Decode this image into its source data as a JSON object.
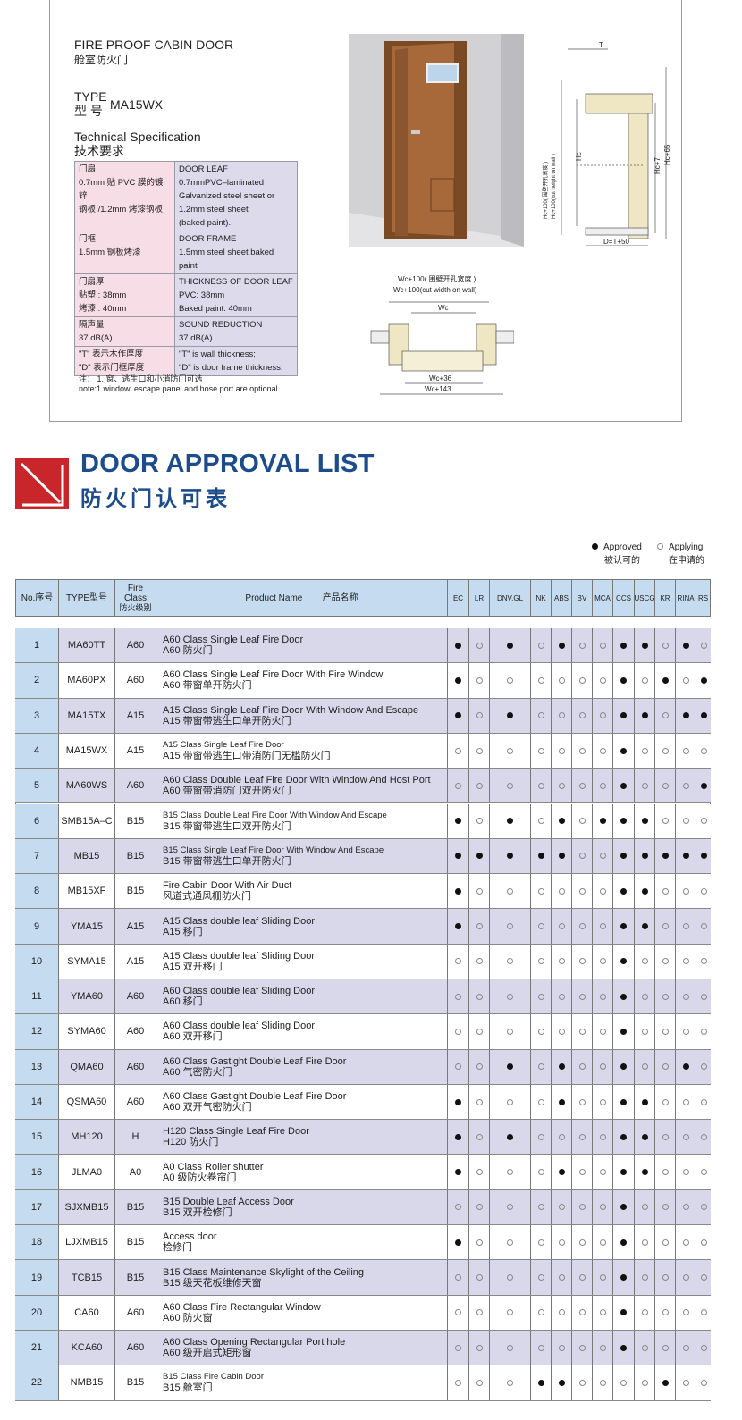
{
  "spec_sheet": {
    "title_en": "FIRE PROOF CABIN DOOR",
    "title_cn": "舱室防火门",
    "type_label_en": "TYPE",
    "type_label_cn": "型  号",
    "type_value": "MA15WX",
    "tech_en": "Technical Specification",
    "tech_cn": "技术要求",
    "rows": [
      {
        "cn": [
          "门扇",
          "0.7mm 贴 PVC 膜的镀锌",
          "钢板 /1.2mm 烤漆钢板"
        ],
        "en": [
          "DOOR LEAF",
          "0.7mmPVC–laminated",
          "Galvanized steel sheet or",
          "1.2mm steel sheet",
          "(baked paint)."
        ]
      },
      {
        "cn": [
          "门框",
          "1.5mm 钢板烤漆"
        ],
        "en": [
          "DOOR FRAME",
          "1.5mm steel sheet baked paint"
        ]
      },
      {
        "cn": [
          "门扇厚",
          "贴塑 : 38mm",
          "烤漆 : 40mm"
        ],
        "en": [
          "THICKNESS OF DOOR LEAF",
          "PVC: 38mm",
          "Baked paint: 40mm"
        ]
      },
      {
        "cn": [
          "隔声量",
          "37 dB(A)"
        ],
        "en": [
          "SOUND REDUCTION",
          "37 dB(A)"
        ]
      },
      {
        "cn": [
          "\"T\" 表示木作厚度",
          "\"D\" 表示门框厚度"
        ],
        "en": [
          "\"T\" is wall thickness;",
          "\"D\" is door frame thickness."
        ]
      }
    ],
    "note_cn": "注： 1. 窗、逃生口和小消防门可选",
    "note_en": "note:1.window, escape panel and hose port are optional.",
    "section_dims": {
      "t": "T",
      "hc": "Hc",
      "hc7": "Hc+7",
      "hc65": "Hc+65",
      "hc100_cn": "Hc+100( 围壁开孔高度 )",
      "hc100_en": "Hc+100(cut height on wall )",
      "d": "D=T+50"
    },
    "plan_dims": {
      "wc100_cn": "Wc+100( 围壁开孔宽度 )",
      "wc100_en": "Wc+100(cut width on wall)",
      "wc": "Wc",
      "wc36": "Wc+36",
      "wc143": "Wc+143"
    }
  },
  "approval": {
    "title_en": "DOOR APPROVAL LIST",
    "title_cn": "防火门认可表",
    "legend": {
      "approved_en": "Approved",
      "approved_cn": "被认可的",
      "applying_en": "Applying",
      "applying_cn": "在申请的"
    },
    "colors": {
      "brand_blue": "#1d4c8c",
      "logo_red": "#c8262a",
      "header_bg": "#c5dcf0",
      "odd_row": "#d9d7ea"
    },
    "headers": {
      "no": "No.序号",
      "type": "TYPE型号",
      "fire_class": [
        "Fire",
        "Class",
        "防火级别"
      ],
      "product": "Product Name        产品名称"
    },
    "societies": [
      "EC",
      "LR",
      "DNV.GL",
      "NK",
      "ABS",
      "BV",
      "MCA",
      "CCS",
      "USCG",
      "KR",
      "RINA",
      "RS"
    ],
    "rows": [
      {
        "no": "1",
        "type": "MA60TT",
        "cls": "A60",
        "en": "A60 Class Single Leaf Fire Door",
        "cn": "A60 防火门",
        "a": [
          1,
          0,
          1,
          0,
          1,
          0,
          0,
          1,
          1,
          0,
          1,
          0
        ]
      },
      {
        "no": "2",
        "type": "MA60PX",
        "cls": "A60",
        "en": "A60 Class Single Leaf Fire Door With Fire Window",
        "cn": "A60 带窗单开防火门",
        "a": [
          1,
          0,
          0,
          0,
          0,
          0,
          0,
          1,
          0,
          1,
          0,
          1
        ]
      },
      {
        "no": "3",
        "type": "MA15TX",
        "cls": "A15",
        "en": "A15 Class Single Leaf Fire Door With Window And Escape",
        "cn": "A15 带窗带逃生口单开防火门",
        "a": [
          1,
          0,
          1,
          0,
          0,
          0,
          0,
          1,
          1,
          0,
          1,
          1
        ]
      },
      {
        "no": "4",
        "type": "MA15WX",
        "cls": "A15",
        "en": "A15 Class Single Leaf Fire Door",
        "cn": "A15 带窗带逃生口带消防门无槛防火门",
        "a": [
          0,
          0,
          0,
          0,
          0,
          0,
          0,
          1,
          0,
          0,
          0,
          0
        ]
      },
      {
        "no": "5",
        "type": "MA60WS",
        "cls": "A60",
        "en": "A60 Class Double Leaf Fire Door With Window And Host Port",
        "cn": "A60 带窗带消防门双开防火门",
        "a": [
          0,
          0,
          0,
          0,
          0,
          0,
          0,
          1,
          0,
          0,
          0,
          1
        ]
      },
      {
        "no": "6",
        "type": "SMB15A–C",
        "cls": "B15",
        "en": "B15 Class Double Leaf Fire Door With Window And Escape",
        "cn": "B15 带窗带逃生口双开防火门",
        "a": [
          1,
          0,
          1,
          0,
          1,
          0,
          1,
          1,
          1,
          0,
          0,
          0
        ]
      },
      {
        "no": "7",
        "type": "MB15",
        "cls": "B15",
        "en": "B15 Class Single Leaf Fire Door With Window And Escape",
        "cn": "B15 带窗带逃生口单开防火门",
        "a": [
          1,
          1,
          1,
          1,
          1,
          0,
          0,
          1,
          1,
          1,
          1,
          1
        ]
      },
      {
        "no": "8",
        "type": "MB15XF",
        "cls": "B15",
        "en": "Fire Cabin Door With Air Duct",
        "cn": "风道式通风栅防火门",
        "a": [
          1,
          0,
          0,
          0,
          0,
          0,
          0,
          1,
          1,
          0,
          0,
          0
        ]
      },
      {
        "no": "9",
        "type": "YMA15",
        "cls": "A15",
        "en": "A15 Class double leaf Sliding Door",
        "cn": "A15 移门",
        "a": [
          1,
          0,
          0,
          0,
          0,
          0,
          0,
          1,
          1,
          0,
          0,
          0
        ]
      },
      {
        "no": "10",
        "type": "SYMA15",
        "cls": "A15",
        "en": "A15 Class double leaf Sliding Door",
        "cn": "A15 双开移门",
        "a": [
          0,
          0,
          0,
          0,
          0,
          0,
          0,
          1,
          0,
          0,
          0,
          0
        ]
      },
      {
        "no": "11",
        "type": "YMA60",
        "cls": "A60",
        "en": "A60 Class double leaf Sliding Door",
        "cn": "A60 移门",
        "a": [
          0,
          0,
          0,
          0,
          0,
          0,
          0,
          1,
          0,
          0,
          0,
          0
        ]
      },
      {
        "no": "12",
        "type": "SYMA60",
        "cls": "A60",
        "en": "A60 Class double leaf Sliding Door",
        "cn": "A60 双开移门",
        "a": [
          0,
          0,
          0,
          0,
          0,
          0,
          0,
          1,
          0,
          0,
          0,
          0
        ]
      },
      {
        "no": "13",
        "type": "QMA60",
        "cls": "A60",
        "en": "A60 Class Gastight Double Leaf Fire Door",
        "cn": "A60 气密防火门",
        "a": [
          0,
          0,
          1,
          0,
          1,
          0,
          0,
          1,
          0,
          0,
          1,
          0
        ]
      },
      {
        "no": "14",
        "type": "QSMA60",
        "cls": "A60",
        "en": "A60 Class Gastight Double Leaf Fire Door",
        "cn": "A60 双开气密防火门",
        "a": [
          1,
          0,
          0,
          0,
          1,
          0,
          0,
          1,
          1,
          0,
          0,
          0
        ]
      },
      {
        "no": "15",
        "type": "MH120",
        "cls": "H",
        "en": "H120 Class Single Leaf Fire Door",
        "cn": "H120 防火门",
        "a": [
          1,
          0,
          1,
          0,
          0,
          0,
          0,
          1,
          1,
          0,
          0,
          0
        ]
      },
      {
        "no": "16",
        "type": "JLMA0",
        "cls": "A0",
        "en": "A0 Class Roller shutter",
        "cn": "A0 级防火卷帘门",
        "a": [
          1,
          0,
          0,
          0,
          1,
          0,
          0,
          1,
          1,
          0,
          0,
          0
        ]
      },
      {
        "no": "17",
        "type": "SJXMB15",
        "cls": "B15",
        "en": "B15  Double Leaf Access Door",
        "cn": "B15 双开检修门",
        "a": [
          0,
          0,
          0,
          0,
          0,
          0,
          0,
          1,
          0,
          0,
          0,
          0
        ]
      },
      {
        "no": "18",
        "type": "LJXMB15",
        "cls": "B15",
        "en": "Access door",
        "cn": "检修门",
        "a": [
          1,
          0,
          0,
          0,
          0,
          0,
          0,
          1,
          0,
          0,
          0,
          0
        ]
      },
      {
        "no": "19",
        "type": "TCB15",
        "cls": "B15",
        "en": "B15 Class Maintenance Skylight of the Ceiling",
        "cn": "B15 级天花板维修天窗",
        "a": [
          0,
          0,
          0,
          0,
          0,
          0,
          0,
          1,
          0,
          0,
          0,
          0
        ]
      },
      {
        "no": "20",
        "type": "CA60",
        "cls": "A60",
        "en": "A60 Class Fire Rectangular Window",
        "cn": "A60 防火窗",
        "a": [
          0,
          0,
          0,
          0,
          0,
          0,
          0,
          1,
          0,
          0,
          0,
          0
        ]
      },
      {
        "no": "21",
        "type": "KCA60",
        "cls": "A60",
        "en": "A60 Class  Opening Rectangular Port hole",
        "cn": "A60 级开启式矩形窗",
        "a": [
          0,
          0,
          0,
          0,
          0,
          0,
          0,
          1,
          0,
          0,
          0,
          0
        ]
      },
      {
        "no": "22",
        "type": "NMB15",
        "cls": "B15",
        "en": "B15 Class Fire Cabin Door",
        "cn": "B15 舱室门",
        "a": [
          0,
          0,
          0,
          1,
          1,
          0,
          0,
          0,
          0,
          1,
          0,
          0
        ]
      }
    ]
  }
}
